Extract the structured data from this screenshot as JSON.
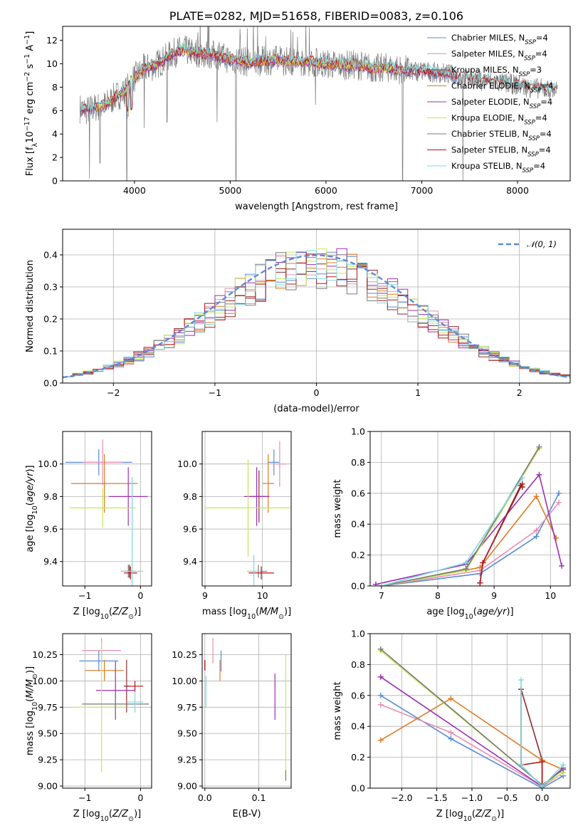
{
  "colors": {
    "chabrier_miles": "#5b8bd8",
    "salpeter_miles": "#e88fb0",
    "kroupa_miles": "#8b2c2c",
    "chabrier_elodie": "#e07b24",
    "salpeter_elodie": "#9a2fb3",
    "kroupa_elodie": "#c7e65a",
    "chabrier_stelib": "#7a7a7a",
    "salpeter_stelib": "#b01818",
    "kroupa_stelib": "#7fd8dc"
  },
  "chart_data": [
    {
      "id": "spectrum",
      "type": "line",
      "title": "PLATE=0282, MJD=51658, FIBERID=0083, z=0.106",
      "xlabel": "wavelength [Angstrom, rest frame]",
      "ylabel_main": "Flux [f",
      "ylabel_sub": "λ",
      "ylabel_rest": "10",
      "ylabel_exp": "−17",
      "ylabel_tail": " erg cm",
      "ylabel_exp2": "−2",
      "ylabel_tail2": " s",
      "ylabel_exp3": "−1",
      "ylabel_tail3": " A",
      "ylabel_exp4": "−1",
      "ylabel_close": "]",
      "xlim": [
        3250,
        8550
      ],
      "ylim": [
        0,
        13.2
      ],
      "xticks": [
        4000,
        5000,
        6000,
        7000,
        8000
      ],
      "yticks": [
        0,
        2,
        4,
        6,
        8,
        10,
        12
      ],
      "legend": [
        {
          "label": "Chabrier MILES, N",
          "sub": "SSP",
          "tail": "=4",
          "color_key": "chabrier_miles"
        },
        {
          "label": "Salpeter MILES, N",
          "sub": "SSP",
          "tail": "=4",
          "color_key": "salpeter_miles"
        },
        {
          "label": "Kroupa MILES, N",
          "sub": "SSP",
          "tail": "=3",
          "color_key": "kroupa_miles"
        },
        {
          "label": "Chabrier ELODIE, N",
          "sub": "SSP",
          "tail": "=4",
          "color_key": "chabrier_elodie"
        },
        {
          "label": "Salpeter ELODIE, N",
          "sub": "SSP",
          "tail": "=4",
          "color_key": "salpeter_elodie"
        },
        {
          "label": "Kroupa ELODIE, N",
          "sub": "SSP",
          "tail": "=4",
          "color_key": "kroupa_elodie"
        },
        {
          "label": "Chabrier STELIB, N",
          "sub": "SSP",
          "tail": "=4",
          "color_key": "chabrier_stelib"
        },
        {
          "label": "Salpeter STELIB, N",
          "sub": "SSP",
          "tail": "=4",
          "color_key": "salpeter_stelib"
        },
        {
          "label": "Kroupa STELIB, N",
          "sub": "SSP",
          "tail": "=4",
          "color_key": "kroupa_stelib"
        }
      ],
      "continuum": [
        [
          3430,
          6.2
        ],
        [
          3500,
          6.0
        ],
        [
          3600,
          6.3
        ],
        [
          3700,
          6.5
        ],
        [
          3800,
          7.2
        ],
        [
          3900,
          7.6
        ],
        [
          4000,
          8.8
        ],
        [
          4100,
          9.6
        ],
        [
          4200,
          9.8
        ],
        [
          4300,
          10.3
        ],
        [
          4400,
          10.9
        ],
        [
          4500,
          11.2
        ],
        [
          4600,
          11.0
        ],
        [
          4700,
          10.9
        ],
        [
          4800,
          10.8
        ],
        [
          4900,
          10.6
        ],
        [
          5000,
          10.4
        ],
        [
          5100,
          10.3
        ],
        [
          5200,
          10.1
        ],
        [
          5300,
          10.2
        ],
        [
          5400,
          10.3
        ],
        [
          5500,
          10.3
        ],
        [
          5600,
          10.2
        ],
        [
          5700,
          10.2
        ],
        [
          5800,
          10.2
        ],
        [
          5900,
          10.1
        ],
        [
          6000,
          10.0
        ],
        [
          6100,
          9.9
        ],
        [
          6200,
          9.9
        ],
        [
          6300,
          9.9
        ],
        [
          6400,
          9.8
        ],
        [
          6500,
          9.6
        ],
        [
          6600,
          9.7
        ],
        [
          6700,
          9.6
        ],
        [
          6800,
          9.5
        ],
        [
          6900,
          9.4
        ],
        [
          7000,
          9.4
        ],
        [
          7100,
          9.3
        ],
        [
          7200,
          9.2
        ],
        [
          7300,
          9.1
        ],
        [
          7400,
          8.8
        ],
        [
          7500,
          8.7
        ],
        [
          7600,
          8.6
        ],
        [
          7700,
          8.5
        ],
        [
          7800,
          8.4
        ],
        [
          7900,
          8.3
        ],
        [
          8000,
          8.2
        ],
        [
          8100,
          8.0
        ],
        [
          8200,
          7.9
        ],
        [
          8300,
          7.8
        ],
        [
          8400,
          7.8
        ]
      ],
      "observed_dips": [
        [
          3530,
          0.2
        ],
        [
          3640,
          1.5
        ],
        [
          3920,
          0.0
        ],
        [
          4102,
          4.5
        ],
        [
          4340,
          5.0
        ],
        [
          4862,
          5.0
        ],
        [
          5060,
          0.0
        ],
        [
          5890,
          6.5
        ],
        [
          6563,
          8.5
        ],
        [
          6800,
          0.0
        ],
        [
          7430,
          0.0
        ]
      ]
    },
    {
      "id": "residuals",
      "type": "line",
      "xlabel": "(data-model)/error",
      "ylabel": "Normed distribution",
      "xlim": [
        -2.5,
        2.5
      ],
      "ylim": [
        0,
        0.48
      ],
      "xticks": [
        -2,
        -1,
        0,
        1,
        2
      ],
      "yticks": [
        0.0,
        0.1,
        0.2,
        0.3,
        0.4
      ],
      "legend_label": "𝒩(0, 1)",
      "bin_width": 0.1
    },
    {
      "id": "age_vs_Z",
      "type": "scatter",
      "xlabel_main": "Z [log",
      "xlabel_sub": "10",
      "xlabel_rest": "(Z/Z",
      "xlabel_sub2": "⊙",
      "xlabel_close": ")]",
      "ylabel_main": "age  [log",
      "ylabel_sub": "10",
      "ylabel_rest": "(age/yr)]",
      "xlim": [
        -1.4,
        0.2
      ],
      "ylim": [
        9.25,
        10.2
      ],
      "xticks": [
        -1,
        0
      ],
      "yticks": [
        9.4,
        9.6,
        9.8,
        10.0
      ],
      "points": [
        {
          "color_key": "chabrier_miles",
          "x": -0.75,
          "y": 10.01,
          "xerr": 0.6,
          "yerr": 0.08
        },
        {
          "color_key": "salpeter_miles",
          "x": -0.68,
          "y": 10.01,
          "xerr": 0.35,
          "yerr": 0.14
        },
        {
          "color_key": "kroupa_miles",
          "x": -0.2,
          "y": 9.34,
          "xerr": 0.12,
          "yerr": 0.04
        },
        {
          "color_key": "chabrier_elodie",
          "x": -0.65,
          "y": 9.88,
          "xerr": 0.6,
          "yerr": 0.18
        },
        {
          "color_key": "salpeter_elodie",
          "x": -0.22,
          "y": 9.8,
          "xerr": 0.35,
          "yerr": 0.18
        },
        {
          "color_key": "kroupa_elodie",
          "x": -0.68,
          "y": 9.73,
          "xerr": 0.6,
          "yerr": 0.12
        },
        {
          "color_key": "chabrier_stelib",
          "x": -0.22,
          "y": 9.34,
          "xerr": 0.12,
          "yerr": 0.04
        },
        {
          "color_key": "salpeter_stelib",
          "x": -0.18,
          "y": 9.33,
          "xerr": 0.12,
          "yerr": 0.04
        },
        {
          "color_key": "kroupa_stelib",
          "x": -0.15,
          "y": 9.34,
          "xerr": 0.2,
          "yerr": 0.58
        }
      ]
    },
    {
      "id": "age_vs_mass",
      "type": "scatter",
      "xlabel_main": "mass [log",
      "xlabel_sub": "10",
      "xlabel_rest": "(M/M",
      "xlabel_sub2": "⊙",
      "xlabel_close": ")]",
      "xlim": [
        8.95,
        10.5
      ],
      "ylim": [
        9.25,
        10.2
      ],
      "xticks": [
        9,
        10
      ],
      "yticks": [
        9.4,
        9.6,
        9.8,
        10.0
      ],
      "points": [
        {
          "color_key": "chabrier_miles",
          "x": 10.2,
          "y": 10.01,
          "xerr": 0.1,
          "yerr": 0.08
        },
        {
          "color_key": "salpeter_miles",
          "x": 10.3,
          "y": 10.0,
          "xerr": 0.12,
          "yerr": 0.14
        },
        {
          "color_key": "kroupa_miles",
          "x": 9.94,
          "y": 9.8,
          "xerr": 0.15,
          "yerr": 0.16
        },
        {
          "color_key": "chabrier_elodie",
          "x": 10.1,
          "y": 9.88,
          "xerr": 0.1,
          "yerr": 0.18
        },
        {
          "color_key": "salpeter_elodie",
          "x": 9.9,
          "y": 9.8,
          "xerr": 0.22,
          "yerr": 0.18
        },
        {
          "color_key": "kroupa_elodie",
          "x": 9.75,
          "y": 9.73,
          "xerr": 0.75,
          "yerr": 0.3
        },
        {
          "color_key": "chabrier_stelib",
          "x": 9.93,
          "y": 9.34,
          "xerr": 0.15,
          "yerr": 0.04
        },
        {
          "color_key": "salpeter_stelib",
          "x": 9.98,
          "y": 9.33,
          "xerr": 0.22,
          "yerr": 0.04
        },
        {
          "color_key": "kroupa_stelib",
          "x": 9.85,
          "y": 9.34,
          "xerr": 0.12,
          "yerr": 0.1
        }
      ]
    },
    {
      "id": "massweight_vs_age",
      "type": "line",
      "xlabel_main": "age  [log",
      "xlabel_sub": "10",
      "xlabel_rest": "(age/yr)]",
      "ylabel": "mass weight",
      "xlim": [
        6.8,
        10.35
      ],
      "ylim": [
        0,
        1.0
      ],
      "xticks": [
        7,
        8,
        9,
        10
      ],
      "yticks": [
        0.0,
        0.2,
        0.4,
        0.6,
        0.8,
        1.0
      ],
      "series": [
        {
          "color_key": "chabrier_miles",
          "x": [
            7.0,
            8.75,
            9.75,
            10.15
          ],
          "y": [
            0.0,
            0.08,
            0.32,
            0.6
          ]
        },
        {
          "color_key": "salpeter_miles",
          "x": [
            7.0,
            8.75,
            9.75,
            10.15
          ],
          "y": [
            0.0,
            0.1,
            0.36,
            0.54
          ]
        },
        {
          "color_key": "kroupa_miles",
          "x": [
            8.75,
            8.8,
            9.47,
            9.5
          ],
          "y": [
            0.02,
            0.15,
            0.65,
            0.64
          ]
        },
        {
          "color_key": "chabrier_elodie",
          "x": [
            7.0,
            8.75,
            9.75,
            10.1
          ],
          "y": [
            0.0,
            0.12,
            0.58,
            0.31
          ]
        },
        {
          "color_key": "salpeter_elodie",
          "x": [
            6.9,
            8.5,
            9.8,
            10.2
          ],
          "y": [
            0.01,
            0.14,
            0.72,
            0.13
          ]
        },
        {
          "color_key": "kroupa_elodie",
          "x": [
            7.0,
            8.5,
            9.8
          ],
          "y": [
            0.0,
            0.1,
            0.89
          ]
        },
        {
          "color_key": "chabrier_stelib",
          "x": [
            7.0,
            8.5,
            9.8
          ],
          "y": [
            0.0,
            0.11,
            0.9
          ]
        },
        {
          "color_key": "salpeter_stelib",
          "x": [
            8.75,
            8.8,
            9.5
          ],
          "y": [
            0.02,
            0.15,
            0.66
          ]
        },
        {
          "color_key": "kroupa_stelib",
          "x": [
            7.0,
            8.5,
            9.5
          ],
          "y": [
            0.0,
            0.15,
            0.7
          ]
        }
      ]
    },
    {
      "id": "mass_vs_Z",
      "type": "scatter",
      "xlabel_main": "Z [log",
      "xlabel_sub": "10",
      "xlabel_rest": "(Z/Z",
      "xlabel_sub2": "⊙",
      "xlabel_close": ")]",
      "ylabel_main": "mass [log",
      "ylabel_sub": "10",
      "ylabel_rest": "(M/M",
      "ylabel_sub2": "⊙",
      "ylabel_close": ")]",
      "xlim": [
        -1.4,
        0.2
      ],
      "ylim": [
        8.98,
        10.45
      ],
      "xticks": [
        -1,
        0
      ],
      "yticks": [
        9.0,
        9.25,
        9.5,
        9.75,
        10.0,
        10.25
      ],
      "points": [
        {
          "color_key": "chabrier_miles",
          "x": -0.75,
          "y": 10.19,
          "xerr": 0.35,
          "yerr": 0.1
        },
        {
          "color_key": "salpeter_miles",
          "x": -0.7,
          "y": 10.29,
          "xerr": 0.35,
          "yerr": 0.12
        },
        {
          "color_key": "kroupa_miles",
          "x": -0.25,
          "y": 9.95,
          "xerr": 0.05,
          "yerr": 0.25
        },
        {
          "color_key": "chabrier_elodie",
          "x": -0.65,
          "y": 10.1,
          "xerr": 0.35,
          "yerr": 0.1
        },
        {
          "color_key": "salpeter_elodie",
          "x": -0.45,
          "y": 9.91,
          "xerr": 0.35,
          "yerr": 0.28
        },
        {
          "color_key": "kroupa_elodie",
          "x": -0.7,
          "y": 9.75,
          "xerr": 0.45,
          "yerr": 0.62
        },
        {
          "color_key": "chabrier_stelib",
          "x": -0.45,
          "y": 9.78,
          "xerr": 0.6,
          "yerr": 0.1
        },
        {
          "color_key": "salpeter_stelib",
          "x": -0.1,
          "y": 9.95,
          "xerr": 0.15,
          "yerr": 0.05
        },
        {
          "color_key": "kroupa_stelib",
          "x": -0.1,
          "y": 9.8,
          "xerr": 0.15,
          "yerr": 0.1
        }
      ]
    },
    {
      "id": "mass_vs_ebv",
      "type": "scatter",
      "xlabel": "E(B-V)",
      "xlim": [
        -0.005,
        0.16
      ],
      "ylim": [
        8.98,
        10.45
      ],
      "xticks": [
        0.0,
        0.1
      ],
      "yticks": [
        9.0,
        9.25,
        9.5,
        9.75,
        10.0,
        10.25
      ],
      "points": [
        {
          "color_key": "chabrier_miles",
          "x": 0.03,
          "y": 10.19,
          "yerr": 0.1
        },
        {
          "color_key": "salpeter_miles",
          "x": 0.015,
          "y": 10.29,
          "yerr": 0.12
        },
        {
          "color_key": "kroupa_miles",
          "x": 0.0,
          "y": 10.15,
          "yerr": 0.05
        },
        {
          "color_key": "chabrier_elodie",
          "x": 0.028,
          "y": 10.1,
          "yerr": 0.1
        },
        {
          "color_key": "salpeter_elodie",
          "x": 0.13,
          "y": 9.85,
          "yerr": 0.22
        },
        {
          "color_key": "kroupa_elodie",
          "x": 0.15,
          "y": 9.65,
          "yerr": 0.6
        },
        {
          "color_key": "chabrier_stelib",
          "x": 0.15,
          "y": 9.1,
          "yerr": 0.05
        },
        {
          "color_key": "salpeter_stelib",
          "x": 0.0,
          "y": 10.15,
          "yerr": 0.05
        },
        {
          "color_key": "kroupa_stelib",
          "x": 0.002,
          "y": 9.9,
          "yerr": 0.15
        }
      ]
    },
    {
      "id": "massweight_vs_Z",
      "type": "line",
      "xlabel_main": "Z [log",
      "xlabel_sub": "10",
      "xlabel_rest": "(Z/Z",
      "xlabel_sub2": "⊙",
      "xlabel_close": ")]",
      "ylabel": "mass weight",
      "xlim": [
        -2.45,
        0.4
      ],
      "ylim": [
        0,
        1.0
      ],
      "xticks": [
        -2.0,
        -1.5,
        -1.0,
        -0.5,
        0.0
      ],
      "yticks": [
        0.0,
        0.2,
        0.4,
        0.6,
        0.8,
        1.0
      ],
      "series": [
        {
          "color_key": "chabrier_miles",
          "x": [
            -2.3,
            -1.3,
            0.0,
            0.3
          ],
          "y": [
            0.6,
            0.32,
            0.0,
            0.08
          ]
        },
        {
          "color_key": "salpeter_miles",
          "x": [
            -2.3,
            -1.3,
            0.0,
            0.3
          ],
          "y": [
            0.54,
            0.36,
            0.01,
            0.1
          ]
        },
        {
          "color_key": "kroupa_miles",
          "x": [
            -0.3,
            -0.3,
            0.0,
            0.0
          ],
          "y": [
            0.15,
            0.64,
            0.18,
            0.02
          ]
        },
        {
          "color_key": "chabrier_elodie",
          "x": [
            -2.3,
            -1.3,
            0.0,
            0.3
          ],
          "y": [
            0.31,
            0.58,
            0.18,
            0.12
          ]
        },
        {
          "color_key": "salpeter_elodie",
          "x": [
            -2.3,
            0.0,
            0.3
          ],
          "y": [
            0.72,
            0.01,
            0.13
          ]
        },
        {
          "color_key": "kroupa_elodie",
          "x": [
            -2.3,
            0.0,
            0.3
          ],
          "y": [
            0.89,
            0.02,
            0.1
          ]
        },
        {
          "color_key": "chabrier_stelib",
          "x": [
            -2.3,
            0.0,
            0.3
          ],
          "y": [
            0.9,
            0.02,
            0.12
          ]
        },
        {
          "color_key": "salpeter_stelib",
          "x": [
            -0.3,
            0.0,
            0.0
          ],
          "y": [
            0.15,
            0.17,
            0.02
          ]
        },
        {
          "color_key": "kroupa_stelib",
          "x": [
            -0.3,
            -0.3,
            0.0,
            0.3
          ],
          "y": [
            0.7,
            0.15,
            0.01,
            0.15
          ]
        }
      ]
    }
  ]
}
